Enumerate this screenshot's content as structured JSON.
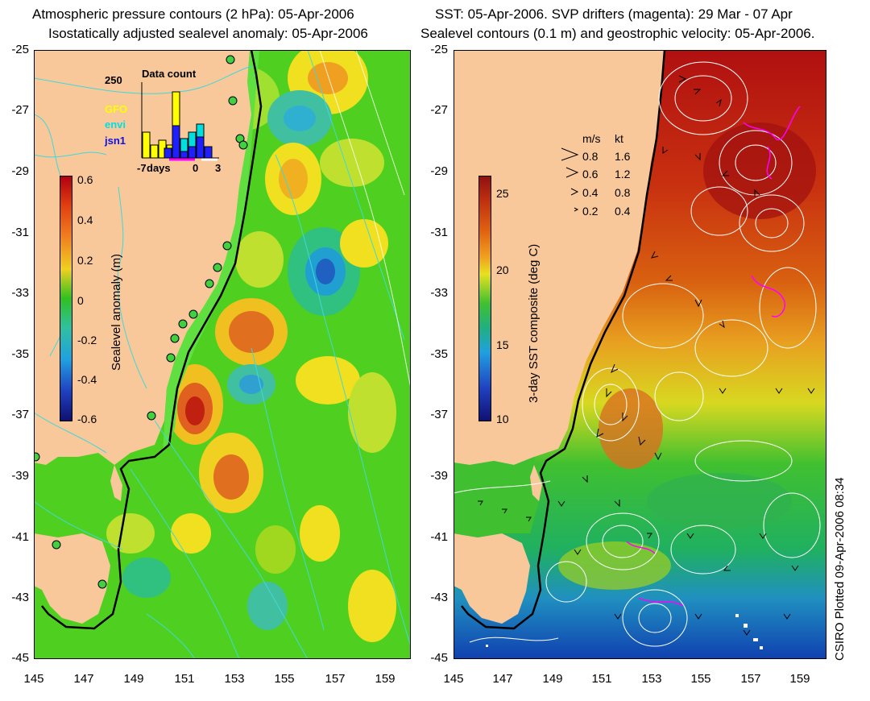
{
  "left_panel": {
    "title_line1": "Atmospheric pressure contours (2 hPa): 05-Apr-2006",
    "title_line2": "Isostatically adjusted sealevel anomaly: 05-Apr-2006",
    "colorbar_label": "Sealevel anomaly (m)",
    "colorbar_ticks": [
      "0.6",
      "0.4",
      "0.2",
      "0",
      "-0.2",
      "-0.4",
      "-0.6"
    ],
    "inset": {
      "y_tick": "250",
      "title": "Data count",
      "legend": [
        "GFO",
        "envi",
        "jsn1"
      ],
      "x_ticks": [
        "-7",
        "days",
        "0",
        "3"
      ]
    }
  },
  "right_panel": {
    "title_line1": "SST: 05-Apr-2006. SVP drifters (magenta): 29 Mar - 07 Apr",
    "title_line2": "Sealevel contours (0.1 m) and geostrophic velocity: 05-Apr-2006.",
    "colorbar_label": "3-day SST composite (deg C)",
    "colorbar_ticks": [
      "25",
      "20",
      "15",
      "10"
    ],
    "speed_legend": {
      "header_ms": "m/s",
      "header_kt": "kt",
      "rows": [
        {
          "ms": "0.8",
          "kt": "1.6"
        },
        {
          "ms": "0.6",
          "kt": "1.2"
        },
        {
          "ms": "0.4",
          "kt": "0.8"
        },
        {
          "ms": "0.2",
          "kt": "0.4"
        }
      ]
    }
  },
  "axes": {
    "y_ticks": [
      "-25",
      "-27",
      "-29",
      "-31",
      "-33",
      "-35",
      "-37",
      "-39",
      "-41",
      "-43",
      "-45"
    ],
    "x_ticks": [
      "145",
      "147",
      "149",
      "151",
      "153",
      "155",
      "157",
      "159"
    ]
  },
  "credit": "CSIRO Plotted 09-Apr-2006 08:34",
  "colors": {
    "land": "#f8c89a",
    "coast": "#000000",
    "pressure_contour": "#40d8d8",
    "sealevel_contour": "#ffffff",
    "drifter": "#ff00ff"
  }
}
